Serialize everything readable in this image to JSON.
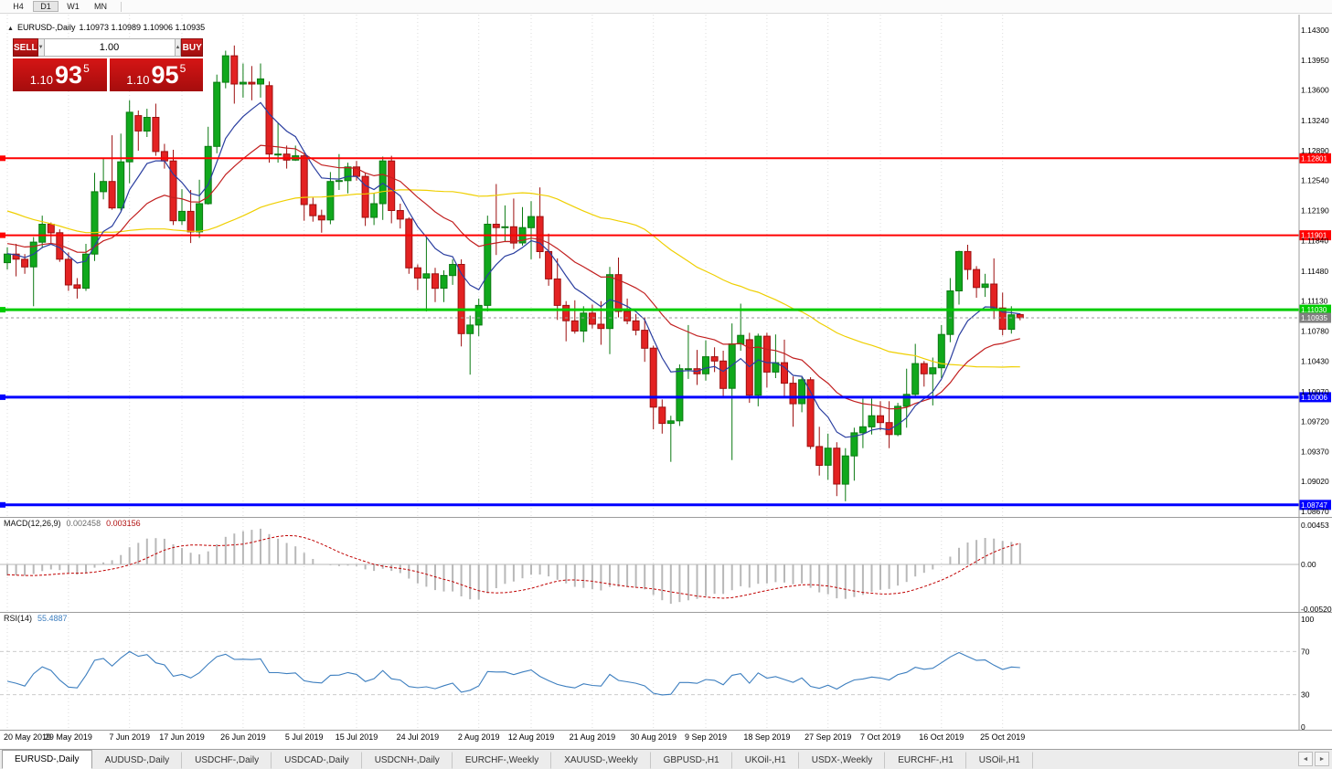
{
  "toolbar": {
    "timeframes": [
      "H4",
      "D1",
      "W1",
      "MN"
    ],
    "active": "D1"
  },
  "chart": {
    "title_symbol": "EURUSD-,Daily",
    "title_ohlc": "1.10973 1.10989 1.10906 1.10935"
  },
  "icons": {
    "collapse": "▲",
    "spinner_up": "▲",
    "spinner_down": "▼",
    "tab_scroll_left": "◄",
    "tab_scroll_right": "►"
  },
  "one_click": {
    "sell_label": "SELL",
    "buy_label": "BUY",
    "volume": "1.00",
    "sell_price": {
      "prefix": "1.10",
      "big": "93",
      "sup": "5"
    },
    "buy_price": {
      "prefix": "1.10",
      "big": "95",
      "sup": "5"
    }
  },
  "chart_data": {
    "type": "candlestick",
    "symbol": "EURUSD",
    "period": "Daily",
    "colors": {
      "up": "#10A81C",
      "up_border": "#0B7A12",
      "down": "#E32222",
      "down_border": "#9d0f0f",
      "grid": "#dcdcdc"
    },
    "price_ticks": [
      "1.14300",
      "1.13950",
      "1.13600",
      "1.13240",
      "1.12890",
      "1.12540",
      "1.12190",
      "1.11840",
      "1.11480",
      "1.11130",
      "1.10780",
      "1.10430",
      "1.10070",
      "1.09720",
      "1.09370",
      "1.09020",
      "1.08670"
    ],
    "hlines": [
      {
        "price": 1.12801,
        "label": "1.12801",
        "color": "#FF0000",
        "width": 2
      },
      {
        "price": 1.11901,
        "label": "1.11901",
        "color": "#FF0000",
        "width": 2
      },
      {
        "price": 1.1103,
        "label": "1.11030",
        "color": "#00CC00",
        "width": 3
      },
      {
        "price": 1.10006,
        "label": "1.10006",
        "color": "#0000FF",
        "width": 3
      },
      {
        "price": 1.08747,
        "label": "1.08747",
        "color": "#0000FF",
        "width": 3
      }
    ],
    "current_price": {
      "value": 1.10935,
      "label": "1.10935",
      "color": "#808080"
    },
    "ma": [
      {
        "period": 8,
        "method": "ema",
        "color": "#2B3FA0"
      },
      {
        "period": 21,
        "method": "ema",
        "color": "#C22020"
      },
      {
        "period": 50,
        "method": "sma",
        "color": "#EFCF00"
      }
    ],
    "date_labels": [
      {
        "text": "20 May 2019",
        "i": 0
      },
      {
        "text": "29 May 2019",
        "i": 7
      },
      {
        "text": "7 Jun 2019",
        "i": 14
      },
      {
        "text": "17 Jun 2019",
        "i": 20
      },
      {
        "text": "26 Jun 2019",
        "i": 27
      },
      {
        "text": "5 Jul 2019",
        "i": 34
      },
      {
        "text": "15 Jul 2019",
        "i": 40
      },
      {
        "text": "24 Jul 2019",
        "i": 47
      },
      {
        "text": "2 Aug 2019",
        "i": 54
      },
      {
        "text": "12 Aug 2019",
        "i": 60
      },
      {
        "text": "21 Aug 2019",
        "i": 67
      },
      {
        "text": "30 Aug 2019",
        "i": 74
      },
      {
        "text": "9 Sep 2019",
        "i": 80
      },
      {
        "text": "18 Sep 2019",
        "i": 87
      },
      {
        "text": "27 Sep 2019",
        "i": 94
      },
      {
        "text": "7 Oct 2019",
        "i": 100
      },
      {
        "text": "16 Oct 2019",
        "i": 107
      },
      {
        "text": "25 Oct 2019",
        "i": 114
      }
    ],
    "warmup_closes": [
      1.1305,
      1.132,
      1.1335,
      1.1342,
      1.133,
      1.1311,
      1.1296,
      1.1288,
      1.127,
      1.1255,
      1.124,
      1.1226,
      1.1232,
      1.1245,
      1.1258,
      1.127,
      1.1282,
      1.129,
      1.1279,
      1.1265,
      1.1252,
      1.1238,
      1.1224,
      1.121,
      1.1196,
      1.118,
      1.1162,
      1.1145,
      1.113,
      1.1118,
      1.1125,
      1.114,
      1.1155,
      1.117,
      1.1183,
      1.1195,
      1.1205,
      1.1215,
      1.1222,
      1.1218,
      1.1208,
      1.1198,
      1.1188,
      1.1178,
      1.117,
      1.1162,
      1.1155,
      1.1148,
      1.116,
      1.1172
    ],
    "candles": [
      [
        1.1158,
        1.1176,
        1.115,
        1.1168
      ],
      [
        1.1168,
        1.118,
        1.1142,
        1.1162
      ],
      [
        1.1162,
        1.1168,
        1.1145,
        1.1153
      ],
      [
        1.1153,
        1.1188,
        1.1107,
        1.1182
      ],
      [
        1.1182,
        1.1213,
        1.1175,
        1.1203
      ],
      [
        1.1203,
        1.1205,
        1.118,
        1.1193
      ],
      [
        1.1193,
        1.1197,
        1.1159,
        1.1162
      ],
      [
        1.1162,
        1.117,
        1.1125,
        1.1132
      ],
      [
        1.1132,
        1.114,
        1.1116,
        1.1128
      ],
      [
        1.1128,
        1.118,
        1.1125,
        1.1168
      ],
      [
        1.1168,
        1.1263,
        1.116,
        1.1241
      ],
      [
        1.1241,
        1.128,
        1.1232,
        1.1253
      ],
      [
        1.1253,
        1.1307,
        1.122,
        1.1222
      ],
      [
        1.1222,
        1.1309,
        1.1219,
        1.1276
      ],
      [
        1.1276,
        1.1348,
        1.1251,
        1.1334
      ],
      [
        1.133,
        1.1336,
        1.1289,
        1.1312
      ],
      [
        1.1312,
        1.1338,
        1.1305,
        1.1328
      ],
      [
        1.1328,
        1.1344,
        1.1283,
        1.1288
      ],
      [
        1.1288,
        1.1297,
        1.1268,
        1.1277
      ],
      [
        1.1277,
        1.129,
        1.1202,
        1.1207
      ],
      [
        1.1207,
        1.1244,
        1.1202,
        1.1218
      ],
      [
        1.1218,
        1.1243,
        1.1181,
        1.1194
      ],
      [
        1.1194,
        1.1255,
        1.1187,
        1.1227
      ],
      [
        1.1227,
        1.1317,
        1.1226,
        1.1294
      ],
      [
        1.1294,
        1.1378,
        1.1286,
        1.1369
      ],
      [
        1.1369,
        1.1406,
        1.1362,
        1.14
      ],
      [
        1.14,
        1.1412,
        1.1344,
        1.1367
      ],
      [
        1.1367,
        1.1391,
        1.1351,
        1.1369
      ],
      [
        1.1369,
        1.1388,
        1.1348,
        1.1367
      ],
      [
        1.1367,
        1.1391,
        1.1351,
        1.1373
      ],
      [
        1.1365,
        1.137,
        1.1275,
        1.1285
      ],
      [
        1.1285,
        1.1322,
        1.1275,
        1.1285
      ],
      [
        1.1285,
        1.1295,
        1.1268,
        1.1278
      ],
      [
        1.1278,
        1.1295,
        1.1277,
        1.1283
      ],
      [
        1.1283,
        1.1286,
        1.1207,
        1.1226
      ],
      [
        1.1226,
        1.1234,
        1.1206,
        1.1213
      ],
      [
        1.1213,
        1.122,
        1.1193,
        1.1208
      ],
      [
        1.1208,
        1.1264,
        1.1203,
        1.1253
      ],
      [
        1.1253,
        1.1285,
        1.1243,
        1.1254
      ],
      [
        1.1254,
        1.1275,
        1.1239,
        1.127
      ],
      [
        1.127,
        1.1277,
        1.1254,
        1.1259
      ],
      [
        1.1259,
        1.1263,
        1.1201,
        1.1211
      ],
      [
        1.1211,
        1.1239,
        1.1202,
        1.1227
      ],
      [
        1.1227,
        1.1282,
        1.1208,
        1.1277
      ],
      [
        1.1277,
        1.1283,
        1.1204,
        1.1219
      ],
      [
        1.1219,
        1.1227,
        1.1198,
        1.1209
      ],
      [
        1.1209,
        1.1211,
        1.1145,
        1.1152
      ],
      [
        1.1152,
        1.1156,
        1.1126,
        1.114
      ],
      [
        1.114,
        1.1188,
        1.1101,
        1.1145
      ],
      [
        1.1145,
        1.1152,
        1.1112,
        1.1128
      ],
      [
        1.1128,
        1.1149,
        1.1112,
        1.1143
      ],
      [
        1.1143,
        1.1162,
        1.1132,
        1.1156
      ],
      [
        1.1156,
        1.1162,
        1.106,
        1.1075
      ],
      [
        1.1075,
        1.1096,
        1.1027,
        1.1085
      ],
      [
        1.1085,
        1.1116,
        1.1072,
        1.1108
      ],
      [
        1.1108,
        1.1213,
        1.1101,
        1.1203
      ],
      [
        1.1203,
        1.125,
        1.1167,
        1.1199
      ],
      [
        1.1199,
        1.1225,
        1.1183,
        1.12
      ],
      [
        1.12,
        1.1233,
        1.1174,
        1.1181
      ],
      [
        1.1181,
        1.1223,
        1.1178,
        1.1199
      ],
      [
        1.1199,
        1.123,
        1.1162,
        1.1212
      ],
      [
        1.1212,
        1.1246,
        1.1163,
        1.1171
      ],
      [
        1.1171,
        1.1192,
        1.1131,
        1.1139
      ],
      [
        1.1139,
        1.1163,
        1.1091,
        1.1108
      ],
      [
        1.1108,
        1.1113,
        1.1066,
        1.109
      ],
      [
        1.109,
        1.1114,
        1.1075,
        1.1078
      ],
      [
        1.1078,
        1.1107,
        1.1065,
        1.1099
      ],
      [
        1.1099,
        1.1109,
        1.1081,
        1.1086
      ],
      [
        1.1086,
        1.1113,
        1.1062,
        1.1081
      ],
      [
        1.1081,
        1.1153,
        1.1051,
        1.1144
      ],
      [
        1.1144,
        1.1164,
        1.1094,
        1.1101
      ],
      [
        1.1101,
        1.1116,
        1.1086,
        1.109
      ],
      [
        1.109,
        1.1098,
        1.1073,
        1.1079
      ],
      [
        1.1079,
        1.1094,
        1.1042,
        1.1058
      ],
      [
        1.1058,
        1.1061,
        1.0963,
        1.0989
      ],
      [
        1.0989,
        1.0998,
        1.0958,
        1.097
      ],
      [
        1.097,
        1.0979,
        1.0925,
        1.0973
      ],
      [
        1.0973,
        1.1039,
        1.0967,
        1.1034
      ],
      [
        1.1034,
        1.1085,
        1.1022,
        1.1034
      ],
      [
        1.1034,
        1.1056,
        1.1015,
        1.1028
      ],
      [
        1.1028,
        1.1067,
        1.102,
        1.1048
      ],
      [
        1.1048,
        1.1059,
        1.103,
        1.1043
      ],
      [
        1.1043,
        1.1055,
        1.1001,
        1.1011
      ],
      [
        1.1011,
        1.1087,
        1.0927,
        1.1063
      ],
      [
        1.1063,
        1.111,
        1.1055,
        1.1073
      ],
      [
        1.1068,
        1.1076,
        1.0994,
        1.1003
      ],
      [
        1.1003,
        1.1075,
        1.099,
        1.1072
      ],
      [
        1.1072,
        1.1076,
        1.1012,
        1.103
      ],
      [
        1.103,
        1.1074,
        1.1023,
        1.1041
      ],
      [
        1.1041,
        1.1068,
        1.1002,
        1.1017
      ],
      [
        1.1017,
        1.1025,
        1.0966,
        1.0993
      ],
      [
        1.0993,
        1.1024,
        1.0983,
        1.1021
      ],
      [
        1.1021,
        1.1024,
        1.094,
        1.0943
      ],
      [
        1.0943,
        1.0966,
        1.0909,
        1.0921
      ],
      [
        1.0921,
        1.0958,
        1.0904,
        1.0941
      ],
      [
        1.0941,
        1.0948,
        1.0885,
        1.0899
      ],
      [
        1.0899,
        1.0941,
        1.0879,
        1.0932
      ],
      [
        1.0932,
        1.0965,
        1.0903,
        1.0959
      ],
      [
        1.0959,
        1.0999,
        1.0941,
        1.0966
      ],
      [
        1.0966,
        1.0999,
        1.0957,
        1.0979
      ],
      [
        1.0979,
        1.0996,
        1.0962,
        1.0971
      ],
      [
        1.0971,
        1.0996,
        1.0941,
        1.0957
      ],
      [
        1.0957,
        1.0994,
        1.0955,
        1.099
      ],
      [
        1.099,
        1.1034,
        1.0965,
        1.1004
      ],
      [
        1.1004,
        1.1063,
        1.1002,
        1.104
      ],
      [
        1.104,
        1.1043,
        1.1013,
        1.1028
      ],
      [
        1.1028,
        1.1047,
        1.0991,
        1.1035
      ],
      [
        1.1035,
        1.1085,
        1.1023,
        1.1074
      ],
      [
        1.1074,
        1.114,
        1.1065,
        1.1125
      ],
      [
        1.1125,
        1.1172,
        1.1109,
        1.1171
      ],
      [
        1.1171,
        1.1179,
        1.1138,
        1.115
      ],
      [
        1.115,
        1.1154,
        1.1117,
        1.1129
      ],
      [
        1.1129,
        1.1145,
        1.1118,
        1.1133
      ],
      [
        1.1133,
        1.1163,
        1.1092,
        1.1105
      ],
      [
        1.1105,
        1.1123,
        1.1073,
        1.108
      ],
      [
        1.108,
        1.1107,
        1.1075,
        1.1097
      ],
      [
        1.10973,
        1.10989,
        1.10906,
        1.10935
      ]
    ],
    "indicators": {
      "macd": {
        "label": "MACD(12,26,9)",
        "value_main": "0.002458",
        "value_signal": "0.003156",
        "axis": [
          "0.00453",
          "0.00",
          "-0.00520"
        ],
        "histogram_color": "#b8b8b8",
        "signal_color": "#C00000"
      },
      "rsi": {
        "label": "RSI(14)",
        "value": "55.4887",
        "axis": [
          "100",
          "70",
          "30",
          "0"
        ],
        "levels": [
          70,
          30
        ],
        "color": "#3C7EBF"
      }
    }
  },
  "tabs": {
    "items": [
      "EURUSD-,Daily",
      "AUDUSD-,Daily",
      "USDCHF-,Daily",
      "USDCAD-,Daily",
      "USDCNH-,Daily",
      "EURCHF-,Weekly",
      "XAUUSD-,Weekly",
      "GBPUSD-,H1",
      "UKOil-,H1",
      "USDX-,Weekly",
      "EURCHF-,H1",
      "USOil-,H1"
    ],
    "active_index": 0
  }
}
